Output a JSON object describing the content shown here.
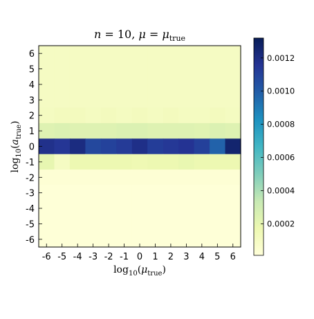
{
  "chart_data": {
    "type": "heatmap",
    "title_parts": {
      "n": "n",
      "eq1": " = 10,  ",
      "mu": "μ",
      "eq2": " = ",
      "mu2": "μ",
      "sub": "true"
    },
    "xlabel_parts": {
      "log": "log",
      "base": "10",
      "open": "(",
      "var": "μ",
      "sub": "true",
      "close": ")"
    },
    "ylabel_parts": {
      "log": "log",
      "base": "10",
      "open": "(",
      "var": "a",
      "sub": "true",
      "close": ")"
    },
    "x_ticks": [
      "-6",
      "-5",
      "-4",
      "-3",
      "-2",
      "-1",
      "0",
      "1",
      "2",
      "3",
      "4",
      "5",
      "6"
    ],
    "y_ticks": [
      "-6",
      "-5",
      "-4",
      "-3",
      "-2",
      "-1",
      "0",
      "1",
      "2",
      "3",
      "4",
      "5",
      "6"
    ],
    "x_range": [
      -6.5,
      6.5
    ],
    "y_range": [
      -6.5,
      6.5
    ],
    "colormap": "YlGnBu",
    "colorbar": {
      "ticks": [
        "0.0002",
        "0.0004",
        "0.0006",
        "0.0008",
        "0.0010",
        "0.0012"
      ],
      "tick_values": [
        0.0002,
        0.0004,
        0.0006,
        0.0008,
        0.001,
        0.0012
      ],
      "min": 1e-05,
      "max": 0.00132
    },
    "rows": [
      {
        "y": 6,
        "values": [
          0.0001,
          0.0001,
          0.0001,
          0.0001,
          0.0001,
          0.0001,
          0.0001,
          0.0001,
          0.0001,
          0.0001,
          0.0001,
          0.0001,
          0.0001
        ]
      },
      {
        "y": 5,
        "values": [
          0.0001,
          0.0001,
          0.0001,
          0.0001,
          0.0001,
          0.0001,
          0.0001,
          0.0001,
          0.0001,
          0.0001,
          0.0001,
          0.0001,
          0.0001
        ]
      },
      {
        "y": 4,
        "values": [
          0.0001,
          0.0001,
          0.0001,
          0.0001,
          0.0001,
          0.0001,
          0.0001,
          0.0001,
          0.0001,
          0.0001,
          0.0001,
          0.0001,
          0.0001
        ]
      },
      {
        "y": 3,
        "values": [
          0.0001,
          0.0001,
          0.0001,
          0.0001,
          0.0001,
          0.0001,
          0.0001,
          0.0001,
          0.0001,
          0.0001,
          0.0001,
          0.0001,
          0.0001
        ]
      },
      {
        "y": 2,
        "values": [
          0.00011,
          0.00012,
          0.00012,
          0.00011,
          0.00012,
          0.00011,
          0.00012,
          0.00011,
          0.00012,
          0.00011,
          0.00011,
          0.00012,
          0.00011
        ]
      },
      {
        "y": 1,
        "values": [
          0.00024,
          0.00025,
          0.00024,
          0.00024,
          0.00024,
          0.00025,
          0.00025,
          0.00024,
          0.00024,
          0.00024,
          0.00023,
          0.00025,
          0.00024
        ]
      },
      {
        "y": 0,
        "values": [
          0.00118,
          0.00115,
          0.00121,
          0.00108,
          0.0011,
          0.00113,
          0.00119,
          0.00112,
          0.00114,
          0.00116,
          0.00111,
          0.00098,
          0.00126
        ]
      },
      {
        "y": -1,
        "values": [
          0.0002,
          0.0001,
          0.00017,
          0.00017,
          0.00017,
          0.00017,
          0.00016,
          0.00017,
          0.00017,
          0.00019,
          0.00017,
          0.00017,
          0.00017
        ]
      },
      {
        "y": -2,
        "values": [
          3e-05,
          3e-05,
          3e-05,
          3e-05,
          3e-05,
          3e-05,
          3e-05,
          3e-05,
          3e-05,
          3e-05,
          3e-05,
          3e-05,
          3e-05
        ]
      },
      {
        "y": -3,
        "values": [
          2e-05,
          2e-05,
          2e-05,
          2e-05,
          2e-05,
          2e-05,
          2e-05,
          2e-05,
          2e-05,
          2e-05,
          2e-05,
          2e-05,
          2e-05
        ]
      },
      {
        "y": -4,
        "values": [
          2e-05,
          2e-05,
          2e-05,
          2e-05,
          2e-05,
          2e-05,
          2e-05,
          2e-05,
          2e-05,
          2e-05,
          2e-05,
          2e-05,
          2e-05
        ]
      },
      {
        "y": -5,
        "values": [
          2e-05,
          2e-05,
          2e-05,
          2e-05,
          2e-05,
          2e-05,
          2e-05,
          2e-05,
          2e-05,
          2e-05,
          2e-05,
          2e-05,
          2e-05
        ]
      },
      {
        "y": -6,
        "values": [
          2e-05,
          2e-05,
          2e-05,
          2e-05,
          2e-05,
          2e-05,
          2e-05,
          2e-05,
          2e-05,
          2e-05,
          2e-05,
          2e-05,
          2e-05
        ]
      }
    ]
  }
}
